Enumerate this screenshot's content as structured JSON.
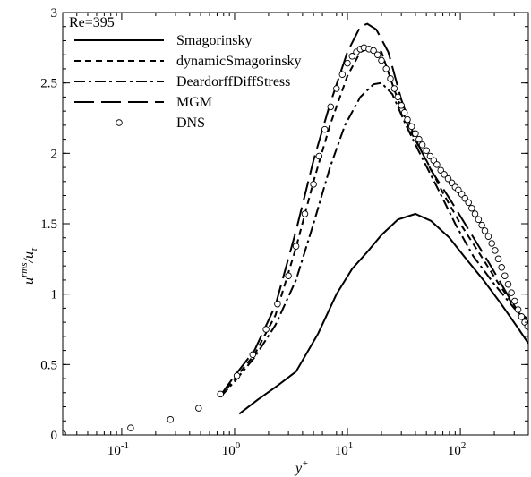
{
  "chart_data": {
    "type": "line",
    "annotation": "Re=395",
    "xlabel": "y",
    "xlabel_sup": "+",
    "ylabel_main": "u",
    "ylabel_sup": "rms",
    "ylabel_sep": "/",
    "ylabel_den": "u",
    "ylabel_sub": "τ",
    "xscale": "log",
    "xlim": [
      0.03,
      400
    ],
    "ylim": [
      0,
      3
    ],
    "x_ticks": [
      {
        "value": 0.1,
        "base": "10",
        "exp": "-1"
      },
      {
        "value": 1,
        "base": "10",
        "exp": "0"
      },
      {
        "value": 10,
        "base": "10",
        "exp": "1"
      },
      {
        "value": 100,
        "base": "10",
        "exp": "2"
      }
    ],
    "y_ticks": [
      {
        "value": 0,
        "label": "0"
      },
      {
        "value": 0.5,
        "label": "0.5"
      },
      {
        "value": 1,
        "label": "1"
      },
      {
        "value": 1.5,
        "label": "1.5"
      },
      {
        "value": 2,
        "label": "2"
      },
      {
        "value": 2.5,
        "label": "2.5"
      },
      {
        "value": 3,
        "label": "3"
      }
    ],
    "legend_position": "top-left",
    "grid": false,
    "series": [
      {
        "name": "Smagorinsky",
        "style": "solid",
        "color": "#000000",
        "points": [
          [
            1.1,
            0.15
          ],
          [
            1.6,
            0.25
          ],
          [
            2.4,
            0.35
          ],
          [
            3.5,
            0.45
          ],
          [
            5.5,
            0.72
          ],
          [
            8,
            1.0
          ],
          [
            11,
            1.18
          ],
          [
            15,
            1.3
          ],
          [
            20,
            1.42
          ],
          [
            28,
            1.53
          ],
          [
            40,
            1.57
          ],
          [
            55,
            1.52
          ],
          [
            80,
            1.4
          ],
          [
            110,
            1.26
          ],
          [
            160,
            1.1
          ],
          [
            230,
            0.93
          ],
          [
            330,
            0.75
          ],
          [
            400,
            0.65
          ]
        ]
      },
      {
        "name": "dynamicSmagorinsky",
        "style": "dashed",
        "color": "#000000",
        "points": [
          [
            0.75,
            0.27
          ],
          [
            1.0,
            0.4
          ],
          [
            1.5,
            0.57
          ],
          [
            2.3,
            0.85
          ],
          [
            3.5,
            1.33
          ],
          [
            5,
            1.8
          ],
          [
            7,
            2.2
          ],
          [
            10,
            2.55
          ],
          [
            13,
            2.72
          ],
          [
            16,
            2.75
          ],
          [
            20,
            2.72
          ],
          [
            26,
            2.45
          ],
          [
            35,
            2.18
          ],
          [
            50,
            1.95
          ],
          [
            70,
            1.72
          ],
          [
            100,
            1.5
          ],
          [
            150,
            1.28
          ],
          [
            220,
            1.07
          ],
          [
            320,
            0.88
          ],
          [
            400,
            0.82
          ]
        ]
      },
      {
        "name": "DeardorffDiffStress",
        "style": "dashdot",
        "color": "#000000",
        "points": [
          [
            0.75,
            0.27
          ],
          [
            1.0,
            0.38
          ],
          [
            1.5,
            0.55
          ],
          [
            2.3,
            0.78
          ],
          [
            3.5,
            1.1
          ],
          [
            5,
            1.5
          ],
          [
            7,
            1.9
          ],
          [
            9.5,
            2.2
          ],
          [
            13,
            2.4
          ],
          [
            17,
            2.49
          ],
          [
            20,
            2.5
          ],
          [
            25,
            2.42
          ],
          [
            33,
            2.2
          ],
          [
            45,
            1.98
          ],
          [
            65,
            1.73
          ],
          [
            90,
            1.5
          ],
          [
            130,
            1.27
          ],
          [
            200,
            1.07
          ],
          [
            300,
            0.9
          ],
          [
            400,
            0.8
          ]
        ]
      },
      {
        "name": "MGM",
        "style": "longdash",
        "color": "#000000",
        "points": [
          [
            0.75,
            0.28
          ],
          [
            1.0,
            0.42
          ],
          [
            1.5,
            0.6
          ],
          [
            2.3,
            0.92
          ],
          [
            3.5,
            1.45
          ],
          [
            5,
            1.95
          ],
          [
            7,
            2.35
          ],
          [
            10,
            2.72
          ],
          [
            13,
            2.9
          ],
          [
            15,
            2.92
          ],
          [
            18,
            2.88
          ],
          [
            23,
            2.72
          ],
          [
            30,
            2.38
          ],
          [
            40,
            2.1
          ],
          [
            55,
            1.88
          ],
          [
            80,
            1.68
          ],
          [
            120,
            1.45
          ],
          [
            180,
            1.22
          ],
          [
            260,
            1.0
          ],
          [
            360,
            0.82
          ],
          [
            400,
            0.78
          ]
        ]
      },
      {
        "name": "DNS",
        "style": "circle",
        "color": "#000000",
        "points": [
          [
            0.03,
            0.01
          ],
          [
            0.12,
            0.05
          ],
          [
            0.27,
            0.11
          ],
          [
            0.48,
            0.19
          ],
          [
            0.75,
            0.29
          ],
          [
            1.05,
            0.42
          ],
          [
            1.45,
            0.57
          ],
          [
            1.9,
            0.75
          ],
          [
            2.4,
            0.93
          ],
          [
            3.0,
            1.13
          ],
          [
            3.5,
            1.34
          ],
          [
            4.2,
            1.57
          ],
          [
            5.0,
            1.78
          ],
          [
            5.6,
            1.98
          ],
          [
            6.3,
            2.17
          ],
          [
            7.1,
            2.33
          ],
          [
            8.0,
            2.46
          ],
          [
            9.0,
            2.56
          ],
          [
            10.0,
            2.64
          ],
          [
            11.0,
            2.69
          ],
          [
            12.0,
            2.72
          ],
          [
            13.0,
            2.74
          ],
          [
            14.0,
            2.75
          ],
          [
            15.5,
            2.74
          ],
          [
            17.0,
            2.73
          ],
          [
            18.5,
            2.7
          ],
          [
            20.0,
            2.66
          ],
          [
            22.0,
            2.6
          ],
          [
            24.0,
            2.53
          ],
          [
            26.0,
            2.46
          ],
          [
            28.0,
            2.4
          ],
          [
            30.0,
            2.34
          ],
          [
            32.0,
            2.29
          ],
          [
            34.0,
            2.24
          ],
          [
            37.0,
            2.19
          ],
          [
            40.0,
            2.14
          ],
          [
            43.0,
            2.1
          ],
          [
            46.0,
            2.06
          ],
          [
            50.0,
            2.02
          ],
          [
            54.0,
            1.98
          ],
          [
            58.0,
            1.95
          ],
          [
            62.0,
            1.92
          ],
          [
            67.0,
            1.88
          ],
          [
            72.0,
            1.85
          ],
          [
            78.0,
            1.82
          ],
          [
            84.0,
            1.79
          ],
          [
            90.0,
            1.76
          ],
          [
            96.0,
            1.74
          ],
          [
            103.0,
            1.71
          ],
          [
            110.0,
            1.68
          ],
          [
            118.0,
            1.65
          ],
          [
            126.0,
            1.61
          ],
          [
            135.0,
            1.57
          ],
          [
            145.0,
            1.53
          ],
          [
            155.0,
            1.49
          ],
          [
            165.0,
            1.45
          ],
          [
            177.0,
            1.41
          ],
          [
            190.0,
            1.36
          ],
          [
            203.0,
            1.31
          ],
          [
            217.0,
            1.25
          ],
          [
            232.0,
            1.19
          ],
          [
            248.0,
            1.13
          ],
          [
            265.0,
            1.07
          ],
          [
            283.0,
            1.01
          ],
          [
            303.0,
            0.95
          ],
          [
            325.0,
            0.89
          ],
          [
            348.0,
            0.84
          ],
          [
            372.0,
            0.8
          ],
          [
            395.0,
            0.77
          ]
        ]
      }
    ]
  }
}
